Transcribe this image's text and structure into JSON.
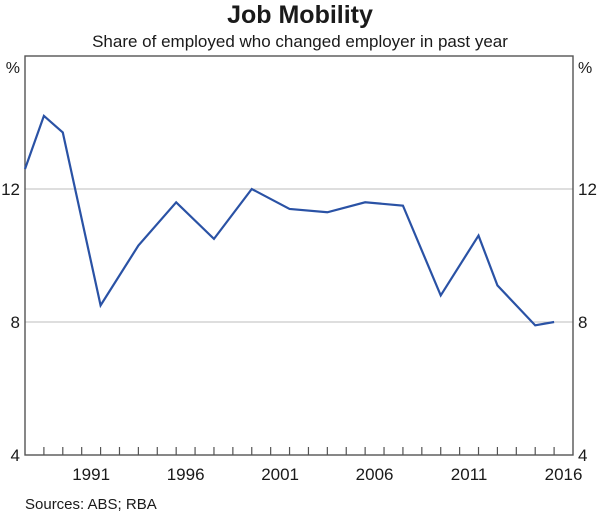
{
  "chart_data": {
    "type": "line",
    "title": "Job Mobility",
    "subtitle": "Share of employed who changed employer in past year",
    "unit_label": "%",
    "sources_label": "Sources: ABS; RBA",
    "xlim": [
      1988,
      2017
    ],
    "ylim": [
      4,
      16
    ],
    "yticks": [
      4,
      8,
      12
    ],
    "gridlines_y": [
      8,
      12
    ],
    "xtick_years": [
      1991,
      1996,
      2001,
      2006,
      2011,
      2016
    ],
    "minor_tick_start": 1989,
    "minor_tick_end": 2016,
    "line_color": "#2A52A5",
    "grid_color": "#BCBCBC",
    "frame_color": "#545454",
    "series": [
      {
        "name": "Share of employed who changed employer in past year",
        "x": [
          1988,
          1989,
          1990,
          1992,
          1994,
          1996,
          1998,
          2000,
          2002,
          2004,
          2006,
          2008,
          2010,
          2012,
          2013,
          2014,
          2015,
          2016
        ],
        "values": [
          12.6,
          14.2,
          13.7,
          8.5,
          10.3,
          11.6,
          10.5,
          12.0,
          11.4,
          11.3,
          11.6,
          11.5,
          8.8,
          10.6,
          9.1,
          8.5,
          7.9,
          8.0
        ]
      }
    ]
  }
}
